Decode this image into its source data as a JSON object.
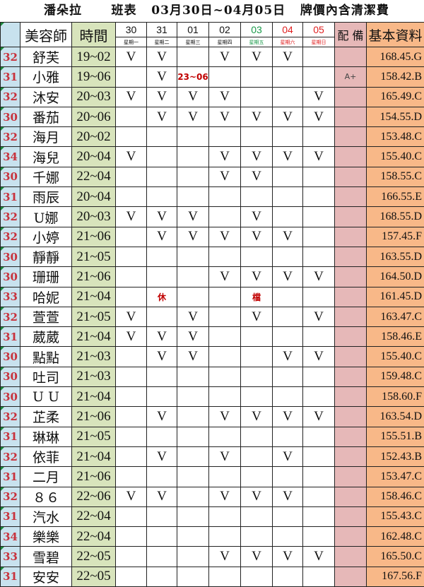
{
  "title": {
    "store": "潘朵拉",
    "label": "班表",
    "range": "03月30日~04月05日",
    "note": "牌價內含清潔費"
  },
  "header": {
    "name": "美容師",
    "time": "時間",
    "note": "配 備",
    "info": "基本資料",
    "days": [
      {
        "date": "30",
        "weekday": "星期一",
        "color": "#111111"
      },
      {
        "date": "31",
        "weekday": "星期二",
        "color": "#111111"
      },
      {
        "date": "01",
        "weekday": "星期三",
        "color": "#111111"
      },
      {
        "date": "02",
        "weekday": "星期四",
        "color": "#111111"
      },
      {
        "date": "03",
        "weekday": "星期五",
        "color": "#1a9a4a"
      },
      {
        "date": "04",
        "weekday": "星期六",
        "color": "#e02020"
      },
      {
        "date": "05",
        "weekday": "星期日",
        "color": "#e02020"
      }
    ]
  },
  "rows": [
    {
      "age": "32",
      "name": "舒芙",
      "time": "19~02",
      "days": [
        "V",
        "V",
        "",
        "V",
        "V",
        "V",
        ""
      ],
      "note": "",
      "info": "168.45.G"
    },
    {
      "age": "31",
      "name": "小雅",
      "time": "19~06",
      "days": [
        "",
        "V",
        "23~06",
        "",
        "",
        "",
        ""
      ],
      "note": "A+",
      "info": "158.42.B"
    },
    {
      "age": "32",
      "name": "沐安",
      "time": "20~03",
      "days": [
        "V",
        "V",
        "V",
        "V",
        "",
        "",
        "V"
      ],
      "note": "",
      "info": "165.49.C"
    },
    {
      "age": "30",
      "name": "番茄",
      "time": "20~06",
      "days": [
        "",
        "V",
        "V",
        "V",
        "V",
        "V",
        "V"
      ],
      "note": "",
      "info": "154.55.D"
    },
    {
      "age": "32",
      "name": "海月",
      "time": "20~02",
      "days": [
        "",
        "",
        "",
        "",
        "",
        "",
        ""
      ],
      "note": "",
      "info": "153.48.C"
    },
    {
      "age": "34",
      "name": "海兒",
      "time": "20~04",
      "days": [
        "V",
        "",
        "",
        "V",
        "V",
        "V",
        "V"
      ],
      "note": "",
      "info": "155.40.C"
    },
    {
      "age": "30",
      "name": "千娜",
      "time": "22~04",
      "days": [
        "",
        "",
        "",
        "V",
        "V",
        "",
        ""
      ],
      "note": "",
      "info": "158.55.C"
    },
    {
      "age": "31",
      "name": "雨辰",
      "time": "20~04",
      "days": [
        "",
        "",
        "",
        "",
        "",
        "",
        ""
      ],
      "note": "",
      "info": "166.55.E"
    },
    {
      "age": "32",
      "name": "U娜",
      "time": "20~03",
      "days": [
        "V",
        "V",
        "V",
        "",
        "V",
        "",
        ""
      ],
      "note": "",
      "info": "168.55.D"
    },
    {
      "age": "32",
      "name": "小婷",
      "time": "21~06",
      "days": [
        "",
        "V",
        "V",
        "V",
        "V",
        "V",
        ""
      ],
      "note": "",
      "info": "157.45.F"
    },
    {
      "age": "30",
      "name": "靜靜",
      "time": "21~05",
      "days": [
        "",
        "",
        "",
        "",
        "",
        "",
        ""
      ],
      "note": "",
      "info": "163.55.D"
    },
    {
      "age": "30",
      "name": "珊珊",
      "time": "21~06",
      "days": [
        "",
        "",
        "",
        "V",
        "V",
        "V",
        "V"
      ],
      "note": "",
      "info": "164.50.D"
    },
    {
      "age": "33",
      "name": "哈妮",
      "time": "21~04",
      "days": [
        "",
        "休",
        "",
        "",
        "檔",
        "",
        ""
      ],
      "note": "",
      "info": "161.45.D"
    },
    {
      "age": "32",
      "name": "萱萱",
      "time": "21~05",
      "days": [
        "V",
        "",
        "V",
        "",
        "V",
        "",
        "V"
      ],
      "note": "",
      "info": "163.47.C"
    },
    {
      "age": "31",
      "name": "葳葳",
      "time": "21~04",
      "days": [
        "V",
        "V",
        "V",
        "",
        "",
        "",
        ""
      ],
      "note": "",
      "info": "158.46.E"
    },
    {
      "age": "30",
      "name": "點點",
      "time": "21~03",
      "days": [
        "",
        "V",
        "V",
        "",
        "",
        "V",
        "V"
      ],
      "note": "",
      "info": "155.40.C"
    },
    {
      "age": "30",
      "name": "吐司",
      "time": "21~03",
      "days": [
        "",
        "",
        "",
        "",
        "",
        "",
        ""
      ],
      "note": "",
      "info": "159.48.C"
    },
    {
      "age": "30",
      "name": "U U",
      "time": "21~04",
      "days": [
        "",
        "",
        "",
        "",
        "",
        "",
        ""
      ],
      "note": "",
      "info": "158.60.F"
    },
    {
      "age": "32",
      "name": "芷柔",
      "time": "21~06",
      "days": [
        "",
        "V",
        "",
        "V",
        "V",
        "V",
        "V"
      ],
      "note": "",
      "info": "163.54.D"
    },
    {
      "age": "31",
      "name": "琳琳",
      "time": "21~05",
      "days": [
        "",
        "",
        "",
        "",
        "",
        "",
        ""
      ],
      "note": "",
      "info": "155.51.B"
    },
    {
      "age": "32",
      "name": "依菲",
      "time": "21~04",
      "days": [
        "",
        "V",
        "",
        "V",
        "",
        "V",
        ""
      ],
      "note": "",
      "info": "152.43.B"
    },
    {
      "age": "31",
      "name": "二月",
      "time": "21~06",
      "days": [
        "",
        "",
        "",
        "",
        "",
        "",
        ""
      ],
      "note": "",
      "info": "153.47.C"
    },
    {
      "age": "32",
      "name": "８６",
      "time": "22~06",
      "days": [
        "V",
        "V",
        "",
        "V",
        "V",
        "V",
        ""
      ],
      "note": "",
      "info": "158.46.C"
    },
    {
      "age": "31",
      "name": "汽水",
      "time": "22~04",
      "days": [
        "",
        "",
        "",
        "",
        "",
        "",
        ""
      ],
      "note": "",
      "info": "155.43.C"
    },
    {
      "age": "34",
      "name": "樂樂",
      "time": "22~04",
      "days": [
        "",
        "",
        "",
        "",
        "",
        "",
        ""
      ],
      "note": "",
      "info": "162.48.C"
    },
    {
      "age": "33",
      "name": "雪碧",
      "time": "22~05",
      "days": [
        "",
        "",
        "",
        "V",
        "V",
        "V",
        "V"
      ],
      "note": "",
      "info": "165.50.C"
    },
    {
      "age": "31",
      "name": "安安",
      "time": "22~05",
      "days": [
        "",
        "",
        "",
        "",
        "",
        "",
        ""
      ],
      "note": "",
      "info": "167.56.F"
    }
  ]
}
